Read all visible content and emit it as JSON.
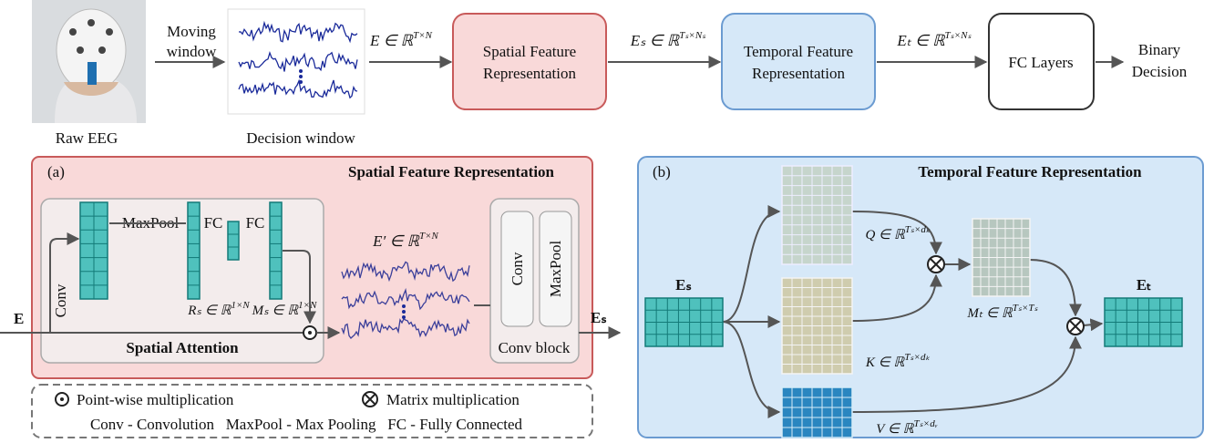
{
  "pipeline": {
    "raw_eeg": "Raw EEG",
    "moving_window": [
      "Moving",
      "window"
    ],
    "decision_window": "Decision window",
    "e_input": {
      "base": "E ∈ ℝ",
      "sup": "T×N"
    },
    "spatial_box": [
      "Spatial Feature",
      "Representation"
    ],
    "es_output": {
      "base": "Eₛ ∈ ℝ",
      "sup": "Tₛ×Nₛ"
    },
    "temporal_box": [
      "Temporal Feature",
      "Representation"
    ],
    "et_output": {
      "base": "Eₜ ∈ ℝ",
      "sup": "Tₛ×Nₛ"
    },
    "fc_box": "FC  Layers",
    "binary_decision": [
      "Binary",
      "Decision"
    ]
  },
  "spatial": {
    "panel": "(a)",
    "title": "Spatial Feature Representation",
    "input": "E",
    "conv": "Conv",
    "maxpool": "MaxPool",
    "fc1": "FC",
    "fc2": "FC",
    "rs": {
      "base": "Rₛ ∈ ℝ",
      "sup": "1×N"
    },
    "ms": {
      "base": "Mₛ ∈ ℝ",
      "sup": "1×N"
    },
    "attention": "Spatial Attention",
    "e_prime": {
      "base": "E′ ∈ ℝ",
      "sup": "T×N"
    },
    "block_conv": "Conv",
    "block_maxpool": "MaxPool",
    "conv_block": "Conv block",
    "output": "Eₛ"
  },
  "legend": {
    "pointwise": "Point-wise  multiplication",
    "matrix": "Matrix multiplication",
    "abbreviations": "Conv - Convolution   MaxPool - Max Pooling   FC - Fully Connected"
  },
  "temporal": {
    "panel": "(b)",
    "title": "Temporal Feature Representation",
    "input": "Eₛ",
    "q": {
      "base": "Q ∈ ℝ",
      "sup": "Tₛ×dₖ"
    },
    "k": {
      "base": "K ∈ ℝ",
      "sup": "Tₛ×dₖ"
    },
    "v": {
      "base": "V ∈ ℝ",
      "sup": "Tₛ×dᵥ"
    },
    "mt": {
      "base": "Mₜ ∈ ℝ",
      "sup": "Tₛ×Tₛ"
    },
    "output": "Eₜ"
  }
}
